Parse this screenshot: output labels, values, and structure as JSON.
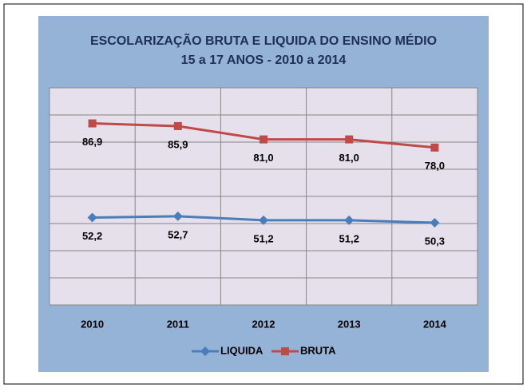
{
  "chart_data": {
    "type": "line",
    "title": "ESCOLARIZAÇÃO BRUTA E LIQUIDA DO ENSINO MÉDIO",
    "subtitle": "15 a 17 ANOS - 2010 a 2014",
    "categories": [
      "2010",
      "2011",
      "2012",
      "2013",
      "2014"
    ],
    "series": [
      {
        "name": "LIQUIDA",
        "color": "#4a7ebb",
        "marker": "diamond",
        "values": [
          52.2,
          52.7,
          51.2,
          51.2,
          50.3
        ],
        "value_labels": [
          "52,2",
          "52,7",
          "51,2",
          "51,2",
          "50,3"
        ]
      },
      {
        "name": "BRUTA",
        "color": "#be4b48",
        "marker": "square",
        "values": [
          86.9,
          85.9,
          81.0,
          81.0,
          78.0
        ],
        "value_labels": [
          "86,9",
          "85,9",
          "81,0",
          "81,0",
          "78,0"
        ]
      }
    ],
    "ylim": [
      20,
      100
    ],
    "yticks": [
      20,
      30,
      40,
      50,
      60,
      70,
      80,
      90,
      100
    ],
    "grid": true,
    "legend": "bottom"
  }
}
